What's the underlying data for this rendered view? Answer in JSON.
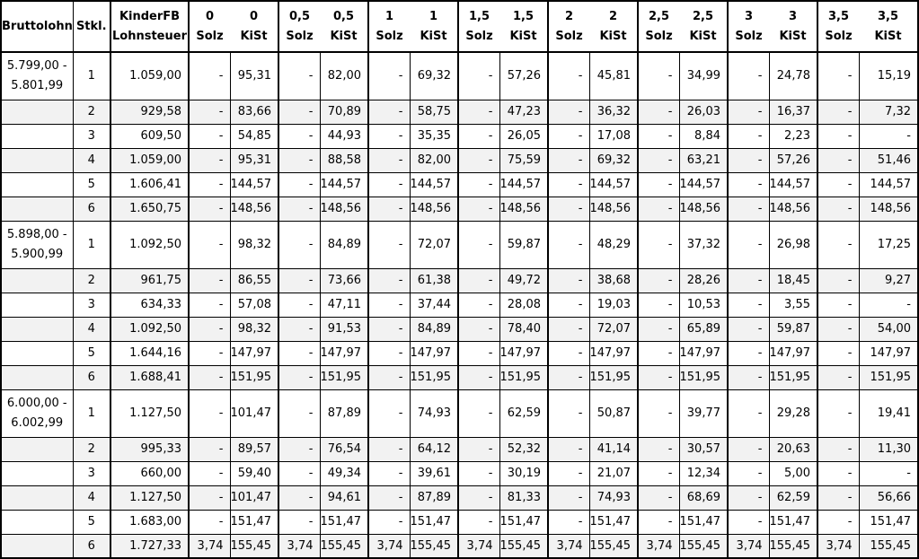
{
  "colors": {
    "background": "#ffffff",
    "zebra_row": "#f2f2f2",
    "border": "#000000",
    "text": "#000000"
  },
  "header": {
    "bruttolohn": "Bruttolohn",
    "stkl": "Stkl.",
    "kinderfb_line1": "KinderFB",
    "kinderfb_line2": "Lohnsteuer",
    "pair_values": [
      "0",
      "0,5",
      "1",
      "1,5",
      "2",
      "2,5",
      "3",
      "3,5"
    ],
    "solz_label": "Solz",
    "kist_label": "KiSt"
  },
  "groups": [
    {
      "range": [
        "5.799,00 -",
        "5.801,99"
      ],
      "rows": [
        {
          "stkl": "1",
          "lohnsteuer": "1.059,00",
          "pairs": [
            [
              "-",
              "95,31"
            ],
            [
              "-",
              "82,00"
            ],
            [
              "-",
              "69,32"
            ],
            [
              "-",
              "57,26"
            ],
            [
              "-",
              "45,81"
            ],
            [
              "-",
              "34,99"
            ],
            [
              "-",
              "24,78"
            ],
            [
              "-",
              "15,19"
            ]
          ]
        },
        {
          "stkl": "2",
          "lohnsteuer": "929,58",
          "pairs": [
            [
              "-",
              "83,66"
            ],
            [
              "-",
              "70,89"
            ],
            [
              "-",
              "58,75"
            ],
            [
              "-",
              "47,23"
            ],
            [
              "-",
              "36,32"
            ],
            [
              "-",
              "26,03"
            ],
            [
              "-",
              "16,37"
            ],
            [
              "-",
              "7,32"
            ]
          ]
        },
        {
          "stkl": "3",
          "lohnsteuer": "609,50",
          "pairs": [
            [
              "-",
              "54,85"
            ],
            [
              "-",
              "44,93"
            ],
            [
              "-",
              "35,35"
            ],
            [
              "-",
              "26,05"
            ],
            [
              "-",
              "17,08"
            ],
            [
              "-",
              "8,84"
            ],
            [
              "-",
              "2,23"
            ],
            [
              "-",
              "-"
            ]
          ]
        },
        {
          "stkl": "4",
          "lohnsteuer": "1.059,00",
          "pairs": [
            [
              "-",
              "95,31"
            ],
            [
              "-",
              "88,58"
            ],
            [
              "-",
              "82,00"
            ],
            [
              "-",
              "75,59"
            ],
            [
              "-",
              "69,32"
            ],
            [
              "-",
              "63,21"
            ],
            [
              "-",
              "57,26"
            ],
            [
              "-",
              "51,46"
            ]
          ]
        },
        {
          "stkl": "5",
          "lohnsteuer": "1.606,41",
          "pairs": [
            [
              "-",
              "144,57"
            ],
            [
              "-",
              "144,57"
            ],
            [
              "-",
              "144,57"
            ],
            [
              "-",
              "144,57"
            ],
            [
              "-",
              "144,57"
            ],
            [
              "-",
              "144,57"
            ],
            [
              "-",
              "144,57"
            ],
            [
              "-",
              "144,57"
            ]
          ]
        },
        {
          "stkl": "6",
          "lohnsteuer": "1.650,75",
          "pairs": [
            [
              "-",
              "148,56"
            ],
            [
              "-",
              "148,56"
            ],
            [
              "-",
              "148,56"
            ],
            [
              "-",
              "148,56"
            ],
            [
              "-",
              "148,56"
            ],
            [
              "-",
              "148,56"
            ],
            [
              "-",
              "148,56"
            ],
            [
              "-",
              "148,56"
            ]
          ]
        }
      ]
    },
    {
      "range": [
        "5.898,00 -",
        "5.900,99"
      ],
      "rows": [
        {
          "stkl": "1",
          "lohnsteuer": "1.092,50",
          "pairs": [
            [
              "-",
              "98,32"
            ],
            [
              "-",
              "84,89"
            ],
            [
              "-",
              "72,07"
            ],
            [
              "-",
              "59,87"
            ],
            [
              "-",
              "48,29"
            ],
            [
              "-",
              "37,32"
            ],
            [
              "-",
              "26,98"
            ],
            [
              "-",
              "17,25"
            ]
          ]
        },
        {
          "stkl": "2",
          "lohnsteuer": "961,75",
          "pairs": [
            [
              "-",
              "86,55"
            ],
            [
              "-",
              "73,66"
            ],
            [
              "-",
              "61,38"
            ],
            [
              "-",
              "49,72"
            ],
            [
              "-",
              "38,68"
            ],
            [
              "-",
              "28,26"
            ],
            [
              "-",
              "18,45"
            ],
            [
              "-",
              "9,27"
            ]
          ]
        },
        {
          "stkl": "3",
          "lohnsteuer": "634,33",
          "pairs": [
            [
              "-",
              "57,08"
            ],
            [
              "-",
              "47,11"
            ],
            [
              "-",
              "37,44"
            ],
            [
              "-",
              "28,08"
            ],
            [
              "-",
              "19,03"
            ],
            [
              "-",
              "10,53"
            ],
            [
              "-",
              "3,55"
            ],
            [
              "-",
              "-"
            ]
          ]
        },
        {
          "stkl": "4",
          "lohnsteuer": "1.092,50",
          "pairs": [
            [
              "-",
              "98,32"
            ],
            [
              "-",
              "91,53"
            ],
            [
              "-",
              "84,89"
            ],
            [
              "-",
              "78,40"
            ],
            [
              "-",
              "72,07"
            ],
            [
              "-",
              "65,89"
            ],
            [
              "-",
              "59,87"
            ],
            [
              "-",
              "54,00"
            ]
          ]
        },
        {
          "stkl": "5",
          "lohnsteuer": "1.644,16",
          "pairs": [
            [
              "-",
              "147,97"
            ],
            [
              "-",
              "147,97"
            ],
            [
              "-",
              "147,97"
            ],
            [
              "-",
              "147,97"
            ],
            [
              "-",
              "147,97"
            ],
            [
              "-",
              "147,97"
            ],
            [
              "-",
              "147,97"
            ],
            [
              "-",
              "147,97"
            ]
          ]
        },
        {
          "stkl": "6",
          "lohnsteuer": "1.688,41",
          "pairs": [
            [
              "-",
              "151,95"
            ],
            [
              "-",
              "151,95"
            ],
            [
              "-",
              "151,95"
            ],
            [
              "-",
              "151,95"
            ],
            [
              "-",
              "151,95"
            ],
            [
              "-",
              "151,95"
            ],
            [
              "-",
              "151,95"
            ],
            [
              "-",
              "151,95"
            ]
          ]
        }
      ]
    },
    {
      "range": [
        "6.000,00 -",
        "6.002,99"
      ],
      "rows": [
        {
          "stkl": "1",
          "lohnsteuer": "1.127,50",
          "pairs": [
            [
              "-",
              "101,47"
            ],
            [
              "-",
              "87,89"
            ],
            [
              "-",
              "74,93"
            ],
            [
              "-",
              "62,59"
            ],
            [
              "-",
              "50,87"
            ],
            [
              "-",
              "39,77"
            ],
            [
              "-",
              "29,28"
            ],
            [
              "-",
              "19,41"
            ]
          ]
        },
        {
          "stkl": "2",
          "lohnsteuer": "995,33",
          "pairs": [
            [
              "-",
              "89,57"
            ],
            [
              "-",
              "76,54"
            ],
            [
              "-",
              "64,12"
            ],
            [
              "-",
              "52,32"
            ],
            [
              "-",
              "41,14"
            ],
            [
              "-",
              "30,57"
            ],
            [
              "-",
              "20,63"
            ],
            [
              "-",
              "11,30"
            ]
          ]
        },
        {
          "stkl": "3",
          "lohnsteuer": "660,00",
          "pairs": [
            [
              "-",
              "59,40"
            ],
            [
              "-",
              "49,34"
            ],
            [
              "-",
              "39,61"
            ],
            [
              "-",
              "30,19"
            ],
            [
              "-",
              "21,07"
            ],
            [
              "-",
              "12,34"
            ],
            [
              "-",
              "5,00"
            ],
            [
              "-",
              "-"
            ]
          ]
        },
        {
          "stkl": "4",
          "lohnsteuer": "1.127,50",
          "pairs": [
            [
              "-",
              "101,47"
            ],
            [
              "-",
              "94,61"
            ],
            [
              "-",
              "87,89"
            ],
            [
              "-",
              "81,33"
            ],
            [
              "-",
              "74,93"
            ],
            [
              "-",
              "68,69"
            ],
            [
              "-",
              "62,59"
            ],
            [
              "-",
              "56,66"
            ]
          ]
        },
        {
          "stkl": "5",
          "lohnsteuer": "1.683,00",
          "pairs": [
            [
              "-",
              "151,47"
            ],
            [
              "-",
              "151,47"
            ],
            [
              "-",
              "151,47"
            ],
            [
              "-",
              "151,47"
            ],
            [
              "-",
              "151,47"
            ],
            [
              "-",
              "151,47"
            ],
            [
              "-",
              "151,47"
            ],
            [
              "-",
              "151,47"
            ]
          ]
        },
        {
          "stkl": "6",
          "lohnsteuer": "1.727,33",
          "pairs": [
            [
              "3,74",
              "155,45"
            ],
            [
              "3,74",
              "155,45"
            ],
            [
              "3,74",
              "155,45"
            ],
            [
              "3,74",
              "155,45"
            ],
            [
              "3,74",
              "155,45"
            ],
            [
              "3,74",
              "155,45"
            ],
            [
              "3,74",
              "155,45"
            ],
            [
              "3,74",
              "155,45"
            ]
          ]
        }
      ]
    }
  ]
}
